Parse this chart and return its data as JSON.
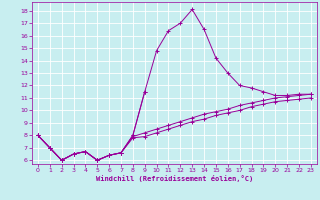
{
  "background_color": "#c8eef0",
  "grid_color": "#ffffff",
  "line_color": "#990099",
  "xlabel": "Windchill (Refroidissement éolien,°C)",
  "xlabel_color": "#990099",
  "tick_color": "#990099",
  "xlim": [
    -0.5,
    23.5
  ],
  "ylim": [
    5.7,
    18.7
  ],
  "yticks": [
    6,
    7,
    8,
    9,
    10,
    11,
    12,
    13,
    14,
    15,
    16,
    17,
    18
  ],
  "xticks": [
    0,
    1,
    2,
    3,
    4,
    5,
    6,
    7,
    8,
    9,
    10,
    11,
    12,
    13,
    14,
    15,
    16,
    17,
    18,
    19,
    20,
    21,
    22,
    23
  ],
  "line_peak_x": [
    0,
    1,
    2,
    3,
    4,
    5,
    6,
    7,
    8,
    9,
    10,
    11,
    12,
    13,
    14,
    15,
    16,
    17,
    18,
    19,
    20,
    21,
    22,
    23
  ],
  "line_peak_y": [
    8.0,
    7.0,
    6.0,
    6.5,
    6.7,
    6.0,
    6.4,
    6.6,
    8.0,
    11.5,
    14.8,
    16.4,
    17.0,
    18.1,
    16.5,
    14.2,
    13.0,
    12.0,
    11.8,
    11.5,
    11.2,
    11.2,
    11.3,
    11.3
  ],
  "line_mid_x": [
    0,
    1,
    2,
    3,
    4,
    5,
    6,
    7,
    8,
    9,
    10,
    11,
    12,
    13,
    14,
    15,
    16,
    17,
    18,
    19,
    20,
    21,
    22,
    23
  ],
  "line_mid_y": [
    8.0,
    7.0,
    6.0,
    6.5,
    6.7,
    6.0,
    6.4,
    6.6,
    7.9,
    8.2,
    8.5,
    8.8,
    9.1,
    9.4,
    9.7,
    9.9,
    10.1,
    10.4,
    10.6,
    10.8,
    11.0,
    11.1,
    11.2,
    11.3
  ],
  "line_low_x": [
    0,
    1,
    2,
    3,
    4,
    5,
    6,
    7,
    8,
    9,
    10,
    11,
    12,
    13,
    14,
    15,
    16,
    17,
    18,
    19,
    20,
    21,
    22,
    23
  ],
  "line_low_y": [
    8.0,
    7.0,
    6.0,
    6.5,
    6.7,
    6.0,
    6.4,
    6.6,
    7.8,
    7.9,
    8.2,
    8.5,
    8.8,
    9.1,
    9.3,
    9.6,
    9.8,
    10.0,
    10.3,
    10.5,
    10.7,
    10.8,
    10.9,
    11.0
  ],
  "line_partial_x": [
    0,
    1,
    2,
    3,
    4,
    5,
    6,
    7,
    8,
    9
  ],
  "line_partial_y": [
    8.0,
    7.0,
    6.0,
    6.5,
    6.7,
    6.0,
    6.4,
    6.6,
    8.0,
    11.5
  ]
}
